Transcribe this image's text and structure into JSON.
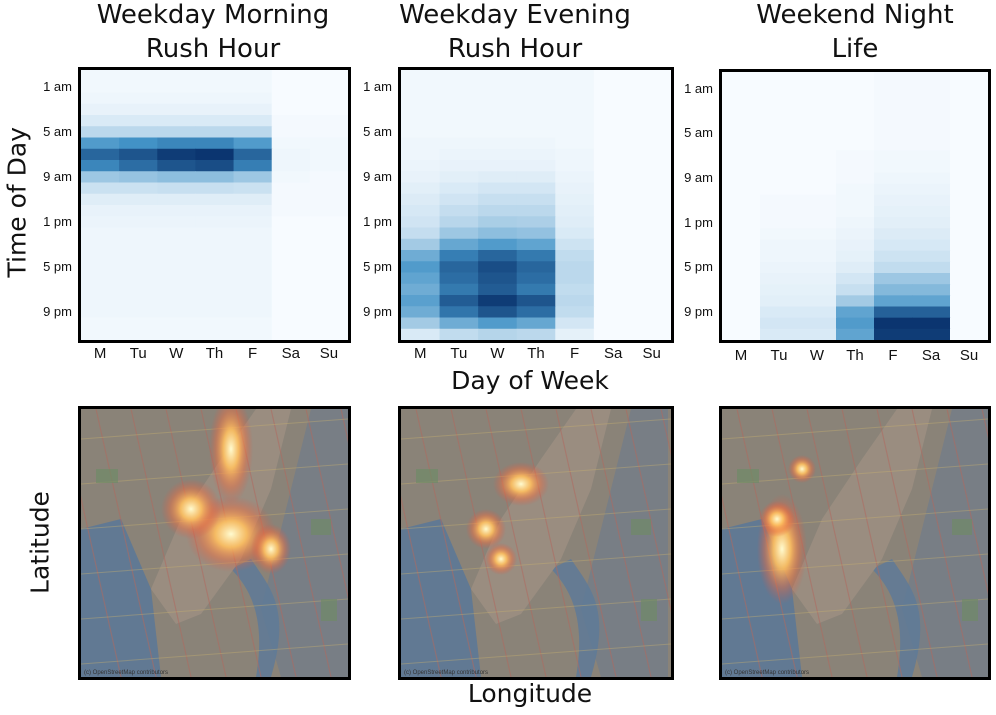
{
  "colors": {
    "low": "#f7fbff",
    "high": "#08306b",
    "border": "#000000"
  },
  "axis_titles": {
    "y_top": "Time of Day",
    "x_top": "Day of Week",
    "y_bottom": "Latitude",
    "x_bottom": "Longitude"
  },
  "chart_data": [
    {
      "type": "heatmap",
      "title": "Weekday Morning Rush Hour",
      "title_lines": [
        "Weekday Morning",
        "Rush Hour"
      ],
      "xlabel": "Day of Week",
      "ylabel": "Time of Day",
      "x": [
        "M",
        "Tu",
        "W",
        "Th",
        "F",
        "Sa",
        "Su"
      ],
      "y_tick_labels": [
        "1 am",
        "5 am",
        "9 am",
        "1 pm",
        "5 pm",
        "9 pm"
      ],
      "hours": [
        0,
        1,
        2,
        3,
        4,
        5,
        6,
        7,
        8,
        9,
        10,
        11,
        12,
        13,
        14,
        15,
        16,
        17,
        18,
        19,
        20,
        21,
        22,
        23
      ],
      "vlim": [
        0,
        1
      ],
      "values": [
        [
          0.02,
          0.02,
          0.02,
          0.02,
          0.02,
          0.0,
          0.0
        ],
        [
          0.02,
          0.02,
          0.02,
          0.02,
          0.02,
          0.0,
          0.0
        ],
        [
          0.03,
          0.03,
          0.03,
          0.03,
          0.03,
          0.0,
          0.0
        ],
        [
          0.05,
          0.05,
          0.05,
          0.05,
          0.05,
          0.0,
          0.0
        ],
        [
          0.1,
          0.1,
          0.1,
          0.1,
          0.1,
          0.01,
          0.01
        ],
        [
          0.2,
          0.2,
          0.2,
          0.2,
          0.2,
          0.01,
          0.01
        ],
        [
          0.55,
          0.6,
          0.65,
          0.65,
          0.55,
          0.02,
          0.02
        ],
        [
          0.78,
          0.85,
          0.95,
          0.98,
          0.78,
          0.03,
          0.02
        ],
        [
          0.65,
          0.75,
          0.85,
          0.88,
          0.68,
          0.03,
          0.02
        ],
        [
          0.3,
          0.32,
          0.35,
          0.35,
          0.3,
          0.02,
          0.01
        ],
        [
          0.15,
          0.15,
          0.16,
          0.16,
          0.15,
          0.01,
          0.01
        ],
        [
          0.08,
          0.08,
          0.08,
          0.08,
          0.08,
          0.01,
          0.01
        ],
        [
          0.05,
          0.05,
          0.05,
          0.05,
          0.05,
          0.01,
          0.01
        ],
        [
          0.04,
          0.04,
          0.04,
          0.04,
          0.04,
          0.0,
          0.0
        ],
        [
          0.03,
          0.03,
          0.03,
          0.03,
          0.03,
          0.0,
          0.0
        ],
        [
          0.03,
          0.03,
          0.03,
          0.03,
          0.03,
          0.0,
          0.0
        ],
        [
          0.03,
          0.03,
          0.03,
          0.03,
          0.03,
          0.0,
          0.0
        ],
        [
          0.03,
          0.03,
          0.03,
          0.03,
          0.03,
          0.0,
          0.0
        ],
        [
          0.03,
          0.03,
          0.03,
          0.03,
          0.03,
          0.0,
          0.0
        ],
        [
          0.03,
          0.03,
          0.03,
          0.03,
          0.03,
          0.0,
          0.0
        ],
        [
          0.03,
          0.03,
          0.03,
          0.03,
          0.03,
          0.0,
          0.0
        ],
        [
          0.03,
          0.03,
          0.03,
          0.03,
          0.03,
          0.0,
          0.0
        ],
        [
          0.02,
          0.02,
          0.02,
          0.02,
          0.02,
          0.0,
          0.0
        ],
        [
          0.02,
          0.02,
          0.02,
          0.02,
          0.02,
          0.0,
          0.0
        ]
      ]
    },
    {
      "type": "heatmap",
      "title": "Weekday Evening Rush Hour",
      "title_lines": [
        "Weekday Evening",
        "Rush Hour"
      ],
      "xlabel": "Day of Week",
      "ylabel": "Time of Day",
      "x": [
        "M",
        "Tu",
        "W",
        "Th",
        "F",
        "Sa",
        "Su"
      ],
      "y_tick_labels": [
        "1 am",
        "5 am",
        "9 am",
        "1 pm",
        "5 pm",
        "9 pm"
      ],
      "hours": [
        0,
        1,
        2,
        3,
        4,
        5,
        6,
        7,
        8,
        9,
        10,
        11,
        12,
        13,
        14,
        15,
        16,
        17,
        18,
        19,
        20,
        21,
        22,
        23
      ],
      "vlim": [
        0,
        1
      ],
      "values": [
        [
          0.02,
          0.02,
          0.02,
          0.02,
          0.02,
          0.0,
          0.0
        ],
        [
          0.02,
          0.02,
          0.02,
          0.02,
          0.02,
          0.0,
          0.0
        ],
        [
          0.02,
          0.02,
          0.02,
          0.02,
          0.02,
          0.0,
          0.0
        ],
        [
          0.02,
          0.02,
          0.02,
          0.02,
          0.02,
          0.0,
          0.0
        ],
        [
          0.02,
          0.02,
          0.02,
          0.02,
          0.02,
          0.0,
          0.0
        ],
        [
          0.02,
          0.02,
          0.02,
          0.02,
          0.02,
          0.0,
          0.0
        ],
        [
          0.03,
          0.03,
          0.03,
          0.03,
          0.02,
          0.0,
          0.0
        ],
        [
          0.03,
          0.04,
          0.04,
          0.04,
          0.03,
          0.0,
          0.0
        ],
        [
          0.04,
          0.05,
          0.05,
          0.05,
          0.03,
          0.0,
          0.0
        ],
        [
          0.05,
          0.07,
          0.08,
          0.08,
          0.04,
          0.0,
          0.0
        ],
        [
          0.07,
          0.1,
          0.12,
          0.12,
          0.05,
          0.0,
          0.0
        ],
        [
          0.09,
          0.13,
          0.16,
          0.16,
          0.06,
          0.0,
          0.0
        ],
        [
          0.11,
          0.17,
          0.2,
          0.2,
          0.07,
          0.0,
          0.0
        ],
        [
          0.13,
          0.21,
          0.26,
          0.25,
          0.08,
          0.0,
          0.0
        ],
        [
          0.17,
          0.3,
          0.35,
          0.33,
          0.1,
          0.0,
          0.0
        ],
        [
          0.28,
          0.48,
          0.55,
          0.5,
          0.14,
          0.0,
          0.0
        ],
        [
          0.45,
          0.68,
          0.78,
          0.7,
          0.18,
          0.0,
          0.0
        ],
        [
          0.55,
          0.78,
          0.88,
          0.78,
          0.2,
          0.0,
          0.0
        ],
        [
          0.5,
          0.75,
          0.85,
          0.75,
          0.2,
          0.0,
          0.0
        ],
        [
          0.45,
          0.7,
          0.82,
          0.7,
          0.18,
          0.0,
          0.0
        ],
        [
          0.52,
          0.82,
          0.95,
          0.85,
          0.2,
          0.0,
          0.0
        ],
        [
          0.45,
          0.72,
          0.85,
          0.75,
          0.18,
          0.0,
          0.0
        ],
        [
          0.28,
          0.45,
          0.55,
          0.48,
          0.12,
          0.0,
          0.0
        ],
        [
          0.1,
          0.18,
          0.22,
          0.2,
          0.06,
          0.0,
          0.0
        ]
      ]
    },
    {
      "type": "heatmap",
      "title": "Weekend Night Life",
      "title_lines": [
        "Weekend Night",
        "Life"
      ],
      "xlabel": "Day of Week",
      "ylabel": "Time of Day",
      "x": [
        "M",
        "Tu",
        "W",
        "Th",
        "F",
        "Sa",
        "Su"
      ],
      "y_tick_labels": [
        "1 am",
        "5 am",
        "9 am",
        "1 pm",
        "5 pm",
        "9 pm"
      ],
      "hours": [
        0,
        1,
        2,
        3,
        4,
        5,
        6,
        7,
        8,
        9,
        10,
        11,
        12,
        13,
        14,
        15,
        16,
        17,
        18,
        19,
        20,
        21,
        22,
        23
      ],
      "vlim": [
        0,
        1
      ],
      "values": [
        [
          0.0,
          0.0,
          0.0,
          0.0,
          0.01,
          0.01,
          0.0
        ],
        [
          0.0,
          0.0,
          0.0,
          0.0,
          0.01,
          0.01,
          0.0
        ],
        [
          0.0,
          0.0,
          0.0,
          0.0,
          0.01,
          0.01,
          0.0
        ],
        [
          0.0,
          0.0,
          0.0,
          0.0,
          0.01,
          0.01,
          0.0
        ],
        [
          0.0,
          0.0,
          0.0,
          0.0,
          0.01,
          0.01,
          0.0
        ],
        [
          0.0,
          0.0,
          0.0,
          0.0,
          0.01,
          0.01,
          0.0
        ],
        [
          0.0,
          0.0,
          0.0,
          0.0,
          0.01,
          0.01,
          0.0
        ],
        [
          0.0,
          0.0,
          0.0,
          0.01,
          0.02,
          0.02,
          0.0
        ],
        [
          0.0,
          0.0,
          0.0,
          0.01,
          0.02,
          0.02,
          0.0
        ],
        [
          0.0,
          0.0,
          0.0,
          0.01,
          0.03,
          0.03,
          0.0
        ],
        [
          0.0,
          0.0,
          0.0,
          0.02,
          0.04,
          0.04,
          0.0
        ],
        [
          0.0,
          0.01,
          0.01,
          0.02,
          0.05,
          0.05,
          0.0
        ],
        [
          0.0,
          0.01,
          0.01,
          0.02,
          0.06,
          0.06,
          0.0
        ],
        [
          0.0,
          0.01,
          0.01,
          0.03,
          0.07,
          0.07,
          0.0
        ],
        [
          0.0,
          0.02,
          0.02,
          0.04,
          0.09,
          0.09,
          0.0
        ],
        [
          0.0,
          0.03,
          0.03,
          0.05,
          0.11,
          0.11,
          0.0
        ],
        [
          0.0,
          0.03,
          0.03,
          0.06,
          0.14,
          0.14,
          0.0
        ],
        [
          0.0,
          0.04,
          0.04,
          0.08,
          0.18,
          0.18,
          0.0
        ],
        [
          0.0,
          0.05,
          0.05,
          0.12,
          0.3,
          0.3,
          0.0
        ],
        [
          0.0,
          0.06,
          0.06,
          0.16,
          0.38,
          0.38,
          0.0
        ],
        [
          0.0,
          0.07,
          0.07,
          0.28,
          0.5,
          0.5,
          0.0
        ],
        [
          0.0,
          0.1,
          0.1,
          0.5,
          0.8,
          0.8,
          0.0
        ],
        [
          0.0,
          0.12,
          0.12,
          0.55,
          0.98,
          0.98,
          0.0
        ],
        [
          0.0,
          0.1,
          0.1,
          0.5,
          0.95,
          0.95,
          0.0
        ]
      ]
    }
  ],
  "maps": [
    {
      "attribution": "(c) OpenStreetMap contributors",
      "hotspots": "midtown-east, midtown-west, lower-manhattan"
    },
    {
      "attribution": "(c) OpenStreetMap contributors",
      "hotspots": "midtown"
    },
    {
      "attribution": "(c) OpenStreetMap contributors",
      "hotspots": "lower-manhattan"
    }
  ]
}
